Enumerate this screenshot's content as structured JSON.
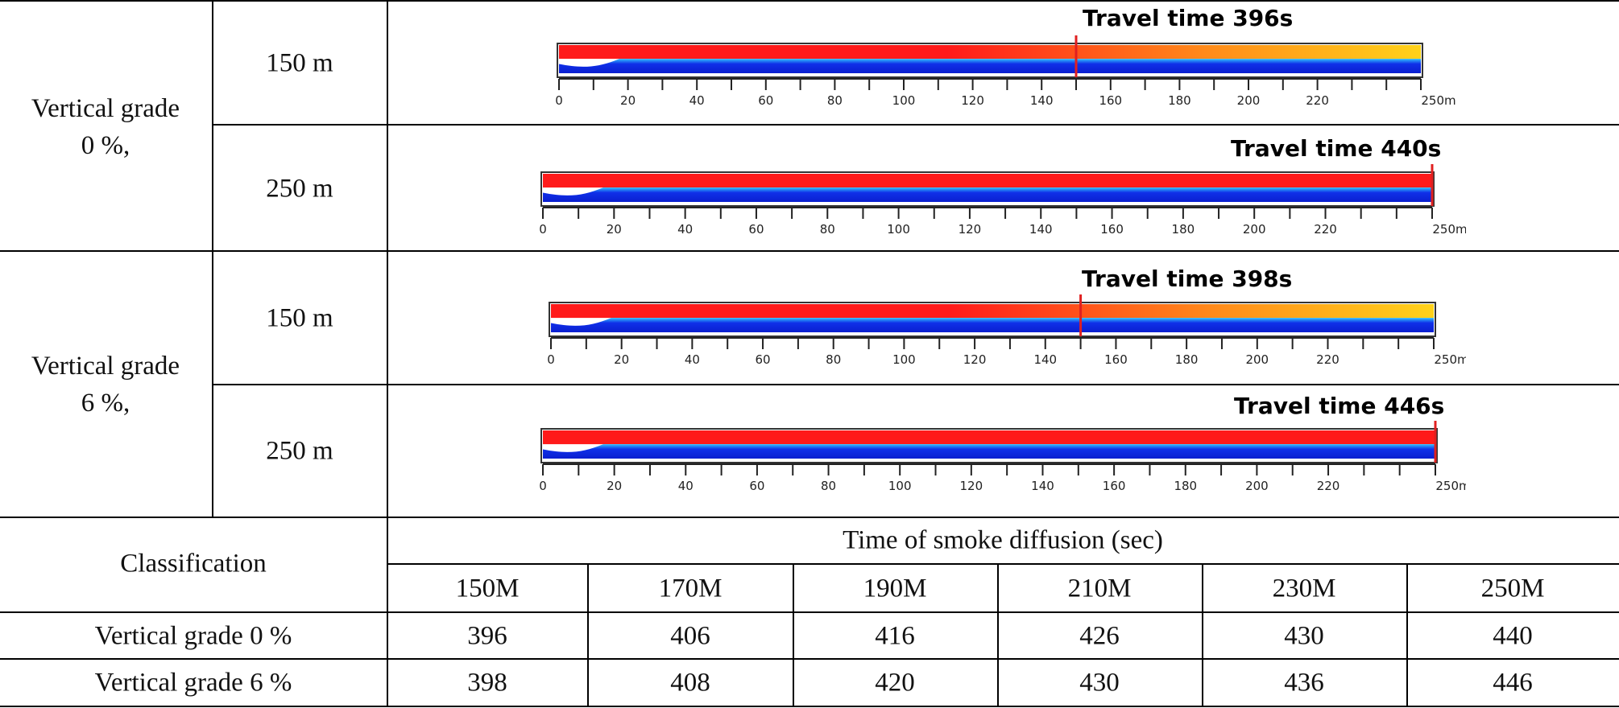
{
  "rows": [
    {
      "group": "Vertical grade\n0 %,",
      "length": "150 m",
      "panel_title": "Travel time 396s",
      "front_at": 150
    },
    {
      "group": "",
      "length": "250 m",
      "panel_title": "Travel time 440s",
      "front_at": 250
    },
    {
      "group": "Vertical grade\n6 %,",
      "length": "150 m",
      "panel_title": "Travel time 398s",
      "front_at": 150
    },
    {
      "group": "",
      "length": "250 m",
      "panel_title": "Travel time 446s",
      "front_at": 250
    }
  ],
  "group_labels": {
    "g0_line1": "Vertical grade",
    "g0_line2": "0 %,",
    "g6_line1": "Vertical grade",
    "g6_line2": "6 %,"
  },
  "axis_ticks": [
    "0",
    "20",
    "40",
    "60",
    "80",
    "100",
    "120",
    "140",
    "160",
    "180",
    "200",
    "220",
    "250m"
  ],
  "table": {
    "classification": "Classification",
    "header_main": "Time of smoke diffusion (sec)",
    "columns": [
      "150M",
      "170M",
      "190M",
      "210M",
      "230M",
      "250M"
    ],
    "rows": [
      {
        "label": "Vertical grade 0 %",
        "values": [
          "396",
          "406",
          "416",
          "426",
          "430",
          "440"
        ]
      },
      {
        "label": "Vertical grade 6 %",
        "values": [
          "398",
          "408",
          "420",
          "430",
          "436",
          "446"
        ]
      }
    ]
  },
  "colors": {
    "smoke_hot": "#ff1a1a",
    "smoke_warm": "#ffd21a",
    "clear_air": "#1030e8",
    "front_marker": "#e02020"
  }
}
